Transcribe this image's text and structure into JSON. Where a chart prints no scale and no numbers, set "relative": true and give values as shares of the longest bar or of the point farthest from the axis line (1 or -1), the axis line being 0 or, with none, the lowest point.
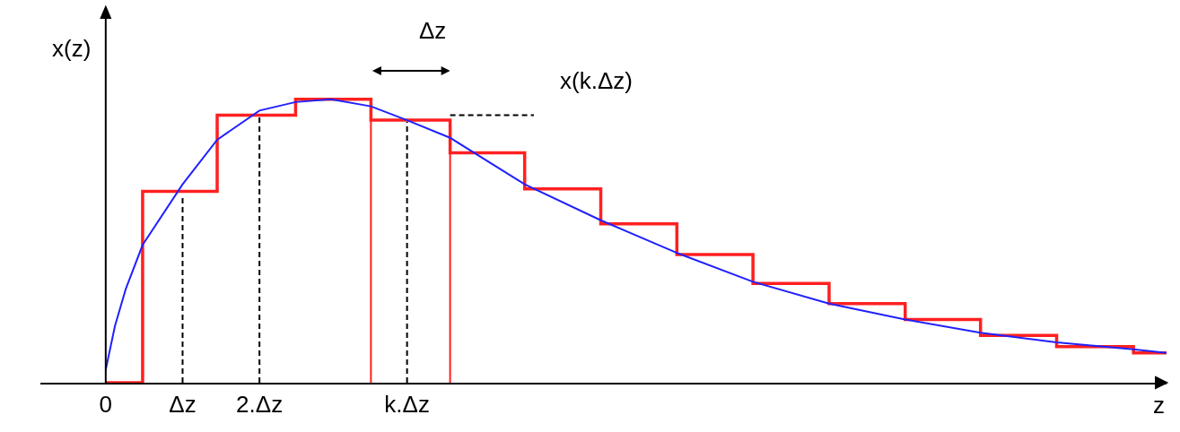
{
  "chart_data": {
    "type": "line",
    "relative": true,
    "xlabel": "z",
    "ylabel": "x(z)",
    "xlim": [
      -0.85,
      13.8
    ],
    "xticks": [
      0,
      {
        "value": 1,
        "label": "Δz"
      },
      {
        "value": 2,
        "label": "2.Δz"
      },
      {
        "value": 3.92,
        "label": "k.Δz"
      }
    ],
    "grid": false,
    "legend": false,
    "tick_labels": "x",
    "series": [
      {
        "type": "step",
        "color": "#ff2020",
        "x": [
          0,
          0.48,
          1.45,
          2.47,
          3.45,
          4.48,
          5.45,
          6.44,
          7.43,
          8.42,
          9.41,
          10.4,
          11.38,
          12.37,
          13.37,
          13.8
        ],
        "values": [
          0,
          0.675,
          0.944,
          1.0,
          0.926,
          0.811,
          0.684,
          0.56,
          0.452,
          0.35,
          0.279,
          0.223,
          0.167,
          0.127,
          0.105,
          0.105
        ]
      },
      {
        "type": "line",
        "color": "#ff2020",
        "x": [
          3.45,
          3.45
        ],
        "values": [
          0,
          0.926
        ]
      },
      {
        "type": "line",
        "color": "#ff2020",
        "x": [
          4.48,
          4.48
        ],
        "values": [
          0,
          0.811
        ]
      },
      {
        "type": "line",
        "color": "#2020ff",
        "x": [
          0,
          0.12,
          0.26,
          0.48,
          1,
          1.45,
          2,
          2.47,
          2.93,
          3.45,
          3.92,
          4.48,
          5.45,
          6.44,
          7.43,
          8.42,
          9.41,
          10.4,
          11.38,
          12.37,
          13.37,
          13.8
        ],
        "values": [
          0.046,
          0.2,
          0.33,
          0.486,
          0.7,
          0.857,
          0.96,
          0.99,
          1.0,
          0.975,
          0.926,
          0.864,
          0.7,
          0.573,
          0.458,
          0.356,
          0.279,
          0.223,
          0.176,
          0.142,
          0.118,
          0.105
        ]
      },
      {
        "type": "line",
        "color": "#000000",
        "line_style": "dashed",
        "x": [
          1,
          1
        ],
        "values": [
          0,
          0.66
        ]
      },
      {
        "type": "line",
        "color": "#000000",
        "line_style": "dashed",
        "x": [
          2,
          2
        ],
        "values": [
          0,
          0.94
        ]
      },
      {
        "type": "line",
        "color": "#000000",
        "line_style": "dashed",
        "x": [
          3.92,
          3.92
        ],
        "values": [
          0,
          0.92
        ]
      },
      {
        "type": "line",
        "color": "#000000",
        "line_style": "dashed",
        "x": [
          4.48,
          5.57
        ],
        "values": [
          0.944,
          0.944
        ]
      }
    ],
    "annotations": [
      "Δz",
      "x(k.Δz)"
    ]
  }
}
